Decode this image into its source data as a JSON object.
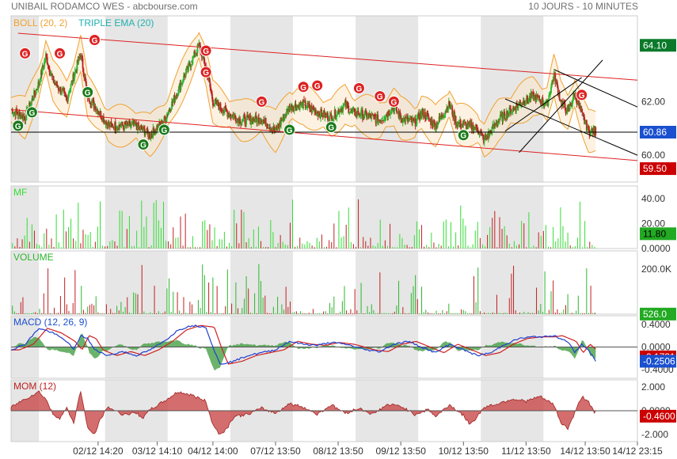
{
  "header": {
    "instrument": "UNIBAIL RODAMCO WES - abcbourse.com",
    "period": "10 JOURS - 10 MINUTES"
  },
  "colors": {
    "up": "#2db52d",
    "down": "#c02020",
    "boll": "#f0a030",
    "tema": "#20b0b0",
    "channel_red": "#dd2222",
    "channel_black": "#000000",
    "macd": "#2040d0",
    "signal": "#d02020",
    "hist": "#3a9a3a",
    "mom_fill": "#c94a4a",
    "mf": "#33dd33",
    "label_green": "#22aa22",
    "label_darkgreen": "#0a7a2a",
    "label_blue": "#1a50d0",
    "label_red": "#cc0000",
    "shade": "#e6e6e6"
  },
  "chart_data": [
    {
      "id": "price",
      "type": "candlestick",
      "indicators": [
        "BOLL (20, 2)",
        "TRIPLE EMA (20)"
      ],
      "ylim": [
        59.0,
        65.2
      ],
      "yticks": [
        62.0,
        60.0
      ],
      "ytick_labels": [
        "62.00",
        "60.00"
      ],
      "value_labels": [
        {
          "text": "64.10",
          "value": 64.1,
          "color": "label_darkgreen"
        },
        {
          "text": "60.86",
          "value": 60.86,
          "color": "label_blue"
        },
        {
          "text": "59.50",
          "value": 59.5,
          "color": "label_red"
        }
      ],
      "reference_line": 60.86,
      "close_anchors": [
        [
          0,
          61.7
        ],
        [
          2,
          61.4
        ],
        [
          4,
          62.7
        ],
        [
          5,
          63.7
        ],
        [
          6,
          62.8
        ],
        [
          8,
          62.1
        ],
        [
          10,
          63.8
        ],
        [
          11,
          62.2
        ],
        [
          14,
          61.1
        ],
        [
          18,
          61.1
        ],
        [
          20,
          60.75
        ],
        [
          22,
          61.3
        ],
        [
          25,
          63.0
        ],
        [
          27,
          64.1
        ],
        [
          28,
          63.3
        ],
        [
          29,
          62.0
        ],
        [
          31,
          61.6
        ],
        [
          33,
          61.3
        ],
        [
          36,
          61.35
        ],
        [
          38,
          60.9
        ],
        [
          40,
          61.8
        ],
        [
          42,
          61.9
        ],
        [
          44,
          61.6
        ],
        [
          46,
          61.4
        ],
        [
          48,
          61.9
        ],
        [
          49,
          61.6
        ],
        [
          51,
          61.5
        ],
        [
          53,
          61.3
        ],
        [
          55,
          61.8
        ],
        [
          56,
          61.4
        ],
        [
          58,
          61.2
        ],
        [
          59,
          61.6
        ],
        [
          61,
          61.1
        ],
        [
          63,
          61.9
        ],
        [
          64,
          61.2
        ],
        [
          67,
          61.0
        ],
        [
          68,
          60.55
        ],
        [
          70,
          61.3
        ],
        [
          73,
          61.9
        ],
        [
          75,
          62.2
        ],
        [
          77,
          61.9
        ],
        [
          78,
          63.0
        ],
        [
          79,
          62.0
        ],
        [
          80,
          61.6
        ],
        [
          81,
          62.3
        ],
        [
          82,
          61.5
        ],
        [
          83,
          60.9
        ]
      ],
      "channels": [
        {
          "from": [
            1,
            64.55
          ],
          "to": [
            90,
            62.8
          ],
          "color": "channel_red"
        },
        {
          "from": [
            0,
            61.7
          ],
          "to": [
            90,
            59.8
          ],
          "color": "channel_red"
        },
        {
          "from": [
            73,
            60.1
          ],
          "to": [
            85,
            63.55
          ],
          "color": "channel_black"
        },
        {
          "from": [
            71,
            62.1
          ],
          "to": [
            90,
            60.0
          ],
          "color": "channel_black"
        },
        {
          "from": [
            71,
            60.9
          ],
          "to": [
            82,
            62.9
          ],
          "color": "channel_black"
        },
        {
          "from": [
            78,
            63.2
          ],
          "to": [
            90,
            61.8
          ],
          "color": "channel_black"
        }
      ],
      "signals": [
        {
          "t": 1,
          "v": 61.1,
          "type": "buy"
        },
        {
          "t": 3,
          "v": 61.6,
          "type": "buy"
        },
        {
          "t": 2,
          "v": 63.8,
          "type": "sell"
        },
        {
          "t": 7,
          "v": 63.8,
          "type": "sell"
        },
        {
          "t": 11,
          "v": 62.35,
          "type": "buy"
        },
        {
          "t": 12,
          "v": 64.3,
          "type": "sell"
        },
        {
          "t": 19,
          "v": 60.4,
          "type": "buy"
        },
        {
          "t": 22,
          "v": 60.95,
          "type": "buy"
        },
        {
          "t": 28,
          "v": 63.9,
          "type": "sell"
        },
        {
          "t": 28,
          "v": 63.1,
          "type": "sell"
        },
        {
          "t": 36,
          "v": 62.0,
          "type": "sell"
        },
        {
          "t": 40,
          "v": 60.95,
          "type": "buy"
        },
        {
          "t": 42,
          "v": 62.55,
          "type": "sell"
        },
        {
          "t": 44,
          "v": 62.6,
          "type": "sell"
        },
        {
          "t": 46,
          "v": 61.05,
          "type": "buy"
        },
        {
          "t": 50,
          "v": 62.5,
          "type": "sell"
        },
        {
          "t": 53,
          "v": 62.2,
          "type": "sell"
        },
        {
          "t": 55,
          "v": 62.0,
          "type": "sell"
        },
        {
          "t": 65,
          "v": 60.75,
          "type": "buy"
        },
        {
          "t": 82,
          "v": 62.25,
          "type": "sell"
        }
      ]
    },
    {
      "id": "mf",
      "label": "MF",
      "type": "bar",
      "ylim": [
        0,
        50
      ],
      "yticks": [
        40.0,
        20.0,
        0.0
      ],
      "ytick_labels": [
        "40.00",
        "20.00",
        "0.0000"
      ],
      "value_labels": [
        {
          "text": "11.80",
          "value": 11.8,
          "color": "label_green",
          "text_color": "#000000"
        }
      ]
    },
    {
      "id": "volume",
      "label": "VOLUME",
      "type": "bar",
      "ylim": [
        0,
        280000
      ],
      "yticks": [
        200000
      ],
      "ytick_labels": [
        "200.0K"
      ],
      "value_labels": [
        {
          "text": "526.0",
          "value": 526.0,
          "color": "label_green"
        }
      ]
    },
    {
      "id": "macd",
      "label": "MACD (12, 26, 9)",
      "type": "line",
      "ylim": [
        -0.55,
        0.55
      ],
      "yticks": [
        0.4,
        0.0,
        -0.4
      ],
      "ytick_labels": [
        "0.4000",
        "0.0000",
        "-0.4000"
      ],
      "value_labels": [
        {
          "text": "-0.1731",
          "value": -0.1731,
          "color": "label_red"
        },
        {
          "text": "-0.2506",
          "value": -0.2506,
          "color": "label_blue"
        }
      ],
      "anchors": [
        [
          0,
          -0.05
        ],
        [
          2,
          0.05
        ],
        [
          4,
          0.33
        ],
        [
          6,
          0.25
        ],
        [
          8,
          0.1
        ],
        [
          9,
          -0.05
        ],
        [
          10,
          0.2
        ],
        [
          11,
          0.15
        ],
        [
          12,
          -0.05
        ],
        [
          14,
          -0.15
        ],
        [
          16,
          -0.08
        ],
        [
          18,
          -0.15
        ],
        [
          20,
          -0.05
        ],
        [
          22,
          0.1
        ],
        [
          24,
          0.3
        ],
        [
          26,
          0.38
        ],
        [
          28,
          0.35
        ],
        [
          29,
          0.0
        ],
        [
          30,
          -0.3
        ],
        [
          32,
          -0.25
        ],
        [
          34,
          -0.15
        ],
        [
          36,
          -0.1
        ],
        [
          38,
          -0.05
        ],
        [
          40,
          0.1
        ],
        [
          42,
          0.05
        ],
        [
          44,
          0.03
        ],
        [
          46,
          0.08
        ],
        [
          48,
          0.05
        ],
        [
          49,
          0.02
        ],
        [
          51,
          -0.05
        ],
        [
          53,
          -0.08
        ],
        [
          55,
          0.05
        ],
        [
          57,
          0.1
        ],
        [
          59,
          0.0
        ],
        [
          61,
          -0.1
        ],
        [
          63,
          0.05
        ],
        [
          65,
          -0.05
        ],
        [
          67,
          -0.15
        ],
        [
          69,
          -0.1
        ],
        [
          71,
          0.05
        ],
        [
          73,
          0.15
        ],
        [
          75,
          0.18
        ],
        [
          77,
          0.18
        ],
        [
          78,
          0.2
        ],
        [
          80,
          0.1
        ],
        [
          81,
          -0.1
        ],
        [
          82,
          0.05
        ],
        [
          83,
          -0.06
        ],
        [
          84,
          -0.2506
        ]
      ]
    },
    {
      "id": "mom",
      "label": "MOM (12)",
      "type": "area",
      "ylim": [
        -2.6,
        2.6
      ],
      "yticks": [
        2.0,
        0.0,
        -2.0
      ],
      "ytick_labels": [
        "2.000",
        "0.0000",
        "-2.000"
      ],
      "value_labels": [
        {
          "text": "-0.4600",
          "value": -0.46,
          "color": "label_red"
        }
      ],
      "anchors": [
        [
          0,
          0.3
        ],
        [
          2,
          1.0
        ],
        [
          4,
          1.6
        ],
        [
          5,
          1.0
        ],
        [
          6,
          -0.3
        ],
        [
          7,
          -0.6
        ],
        [
          8,
          0.2
        ],
        [
          9,
          -1.0
        ],
        [
          10,
          1.7
        ],
        [
          11,
          -1.5
        ],
        [
          12,
          -2.0
        ],
        [
          13,
          -0.5
        ],
        [
          14,
          0.3
        ],
        [
          16,
          -0.3
        ],
        [
          18,
          -0.2
        ],
        [
          19,
          -0.6
        ],
        [
          20,
          0.1
        ],
        [
          22,
          0.8
        ],
        [
          24,
          1.6
        ],
        [
          26,
          1.3
        ],
        [
          28,
          0.8
        ],
        [
          29,
          -1.2
        ],
        [
          30,
          -2.0
        ],
        [
          31,
          -1.5
        ],
        [
          32,
          -0.5
        ],
        [
          34,
          -0.3
        ],
        [
          36,
          0.2
        ],
        [
          38,
          -0.2
        ],
        [
          40,
          0.6
        ],
        [
          42,
          0.3
        ],
        [
          44,
          -0.3
        ],
        [
          46,
          0.5
        ],
        [
          48,
          -0.2
        ],
        [
          50,
          0.2
        ],
        [
          52,
          -0.3
        ],
        [
          54,
          0.5
        ],
        [
          56,
          0.4
        ],
        [
          58,
          -0.3
        ],
        [
          60,
          0.1
        ],
        [
          61,
          -0.5
        ],
        [
          63,
          0.5
        ],
        [
          65,
          -0.4
        ],
        [
          66,
          -1.2
        ],
        [
          68,
          0.3
        ],
        [
          70,
          0.6
        ],
        [
          72,
          1.0
        ],
        [
          74,
          0.8
        ],
        [
          76,
          1.2
        ],
        [
          78,
          0.5
        ],
        [
          79,
          -1.0
        ],
        [
          80,
          -1.5
        ],
        [
          81,
          -0.2
        ],
        [
          82,
          1.2
        ],
        [
          83,
          0.8
        ],
        [
          84,
          -0.46
        ]
      ]
    }
  ],
  "x_axis": {
    "tick_labels": [
      {
        "t": 12.5,
        "label": "02/12 14:20"
      },
      {
        "t": 21.0,
        "label": "03/12 14:10"
      },
      {
        "t": 29.0,
        "label": "04/12 14:00"
      },
      {
        "t": 38.0,
        "label": "07/12 13:50"
      },
      {
        "t": 47.0,
        "label": "08/12 13:50"
      },
      {
        "t": 56.0,
        "label": "09/12 13:50"
      },
      {
        "t": 65.0,
        "label": "10/12 13:50"
      },
      {
        "t": 74.0,
        "label": "11/12 13:50"
      },
      {
        "t": 82.5,
        "label": "14/12 13:50"
      },
      {
        "t": 90.0,
        "label": "14/12 23:15"
      }
    ],
    "shaded_days": [
      [
        0,
        4
      ],
      [
        13.5,
        22.5
      ],
      [
        31.5,
        40.5
      ],
      [
        49.5,
        58.5
      ],
      [
        67.5,
        76.5
      ]
    ]
  }
}
